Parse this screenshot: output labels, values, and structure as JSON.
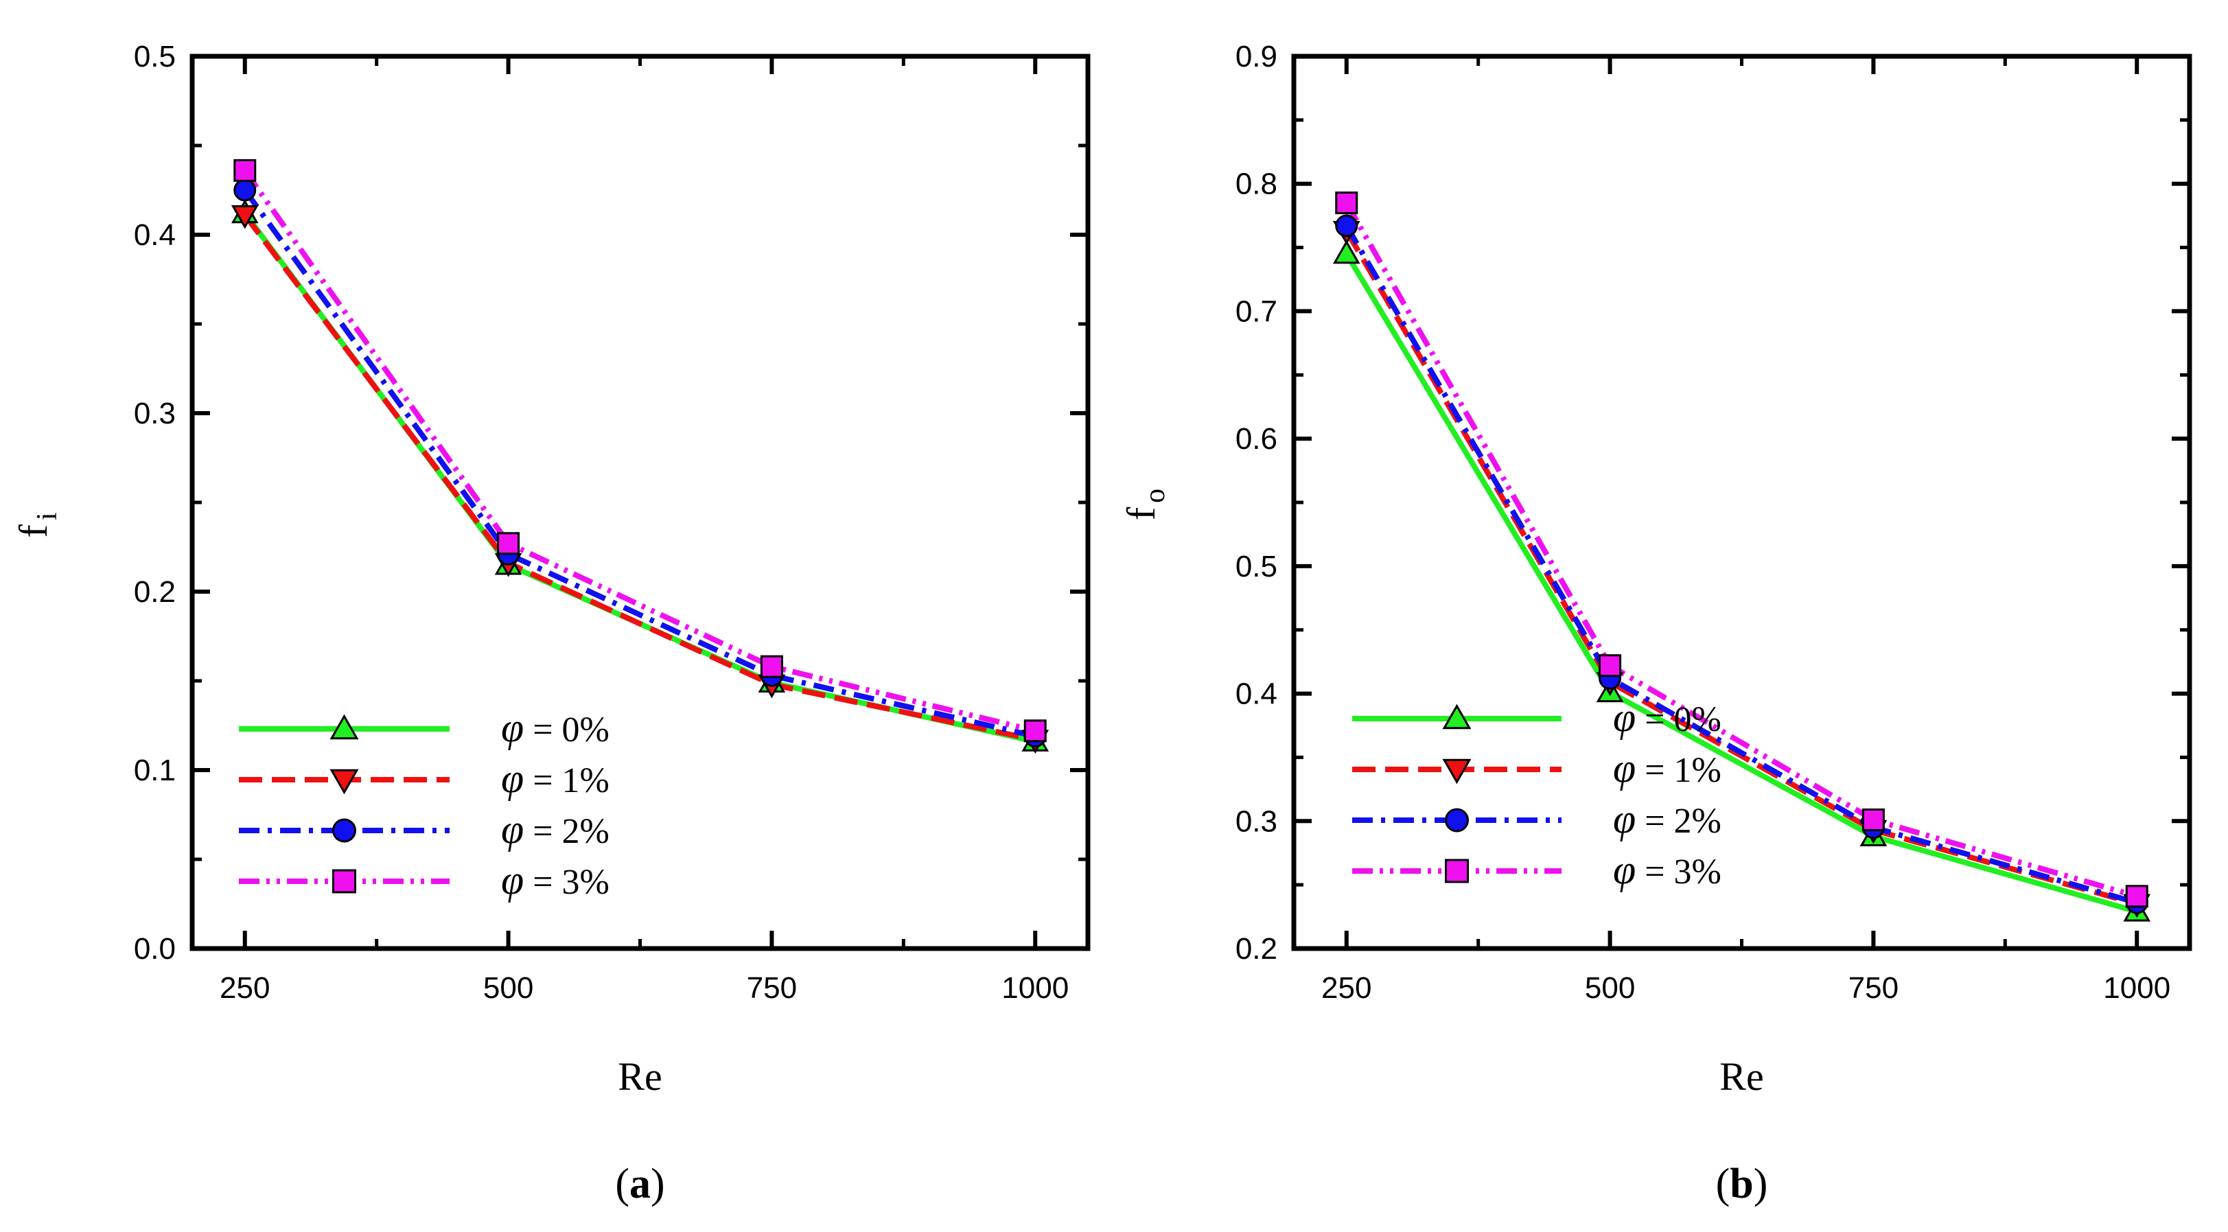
{
  "chart_data": [
    {
      "type": "line",
      "panel_label": {
        "open": "(",
        "letter": "a",
        "close": ")"
      },
      "xlabel": "Re",
      "ylabel": {
        "main": "f",
        "sub": "i"
      },
      "categories": [
        250,
        500,
        750,
        1000
      ],
      "x_ticks": [
        "250",
        "500",
        "750",
        "1000"
      ],
      "xlim": [
        200,
        1050
      ],
      "ylim": [
        0.0,
        0.5
      ],
      "y_ticks": [
        "0.0",
        "0.1",
        "0.2",
        "0.3",
        "0.4",
        "0.5"
      ],
      "legend_position": "lower-left",
      "series": [
        {
          "name": "φ = 0%",
          "phi": "φ",
          "label": "= 0%",
          "color": "#22ee22",
          "dash": "solid",
          "marker": "triangle-up",
          "values": [
            0.412,
            0.215,
            0.149,
            0.116
          ]
        },
        {
          "name": "φ = 1%",
          "phi": "φ",
          "label": "= 1%",
          "color": "#ee1111",
          "dash": "dashed",
          "marker": "triangle-down",
          "values": [
            0.411,
            0.216,
            0.148,
            0.117
          ]
        },
        {
          "name": "φ = 2%",
          "phi": "φ",
          "label": "= 2%",
          "color": "#1111ee",
          "dash": "dashdot",
          "marker": "circle",
          "values": [
            0.425,
            0.221,
            0.153,
            0.119
          ]
        },
        {
          "name": "φ = 3%",
          "phi": "φ",
          "label": "= 3%",
          "color": "#ee11ee",
          "dash": "dashdotdot",
          "marker": "square",
          "values": [
            0.436,
            0.227,
            0.158,
            0.122
          ]
        }
      ]
    },
    {
      "type": "line",
      "panel_label": {
        "open": "(",
        "letter": "b",
        "close": ")"
      },
      "xlabel": "Re",
      "ylabel": {
        "main": "f",
        "sub": "o"
      },
      "categories": [
        250,
        500,
        750,
        1000
      ],
      "x_ticks": [
        "250",
        "500",
        "750",
        "1000"
      ],
      "xlim": [
        200,
        1050
      ],
      "ylim": [
        0.2,
        0.9
      ],
      "y_ticks": [
        "0.2",
        "0.3",
        "0.4",
        "0.5",
        "0.6",
        "0.7",
        "0.8",
        "0.9"
      ],
      "legend_position": "lower-left",
      "series": [
        {
          "name": "φ = 0%",
          "phi": "φ",
          "label": "= 0%",
          "color": "#22ee22",
          "dash": "solid",
          "marker": "triangle-up",
          "values": [
            0.745,
            0.401,
            0.288,
            0.229
          ]
        },
        {
          "name": "φ = 1%",
          "phi": "φ",
          "label": "= 1%",
          "color": "#ee1111",
          "dash": "dashed",
          "marker": "triangle-down",
          "values": [
            0.763,
            0.409,
            0.293,
            0.235
          ]
        },
        {
          "name": "φ = 2%",
          "phi": "φ",
          "label": "= 2%",
          "color": "#1111ee",
          "dash": "dashdot",
          "marker": "circle",
          "values": [
            0.767,
            0.412,
            0.295,
            0.236
          ]
        },
        {
          "name": "φ = 3%",
          "phi": "φ",
          "label": "= 3%",
          "color": "#ee11ee",
          "dash": "dashdotdot",
          "marker": "square",
          "values": [
            0.785,
            0.422,
            0.301,
            0.241
          ]
        }
      ]
    }
  ]
}
